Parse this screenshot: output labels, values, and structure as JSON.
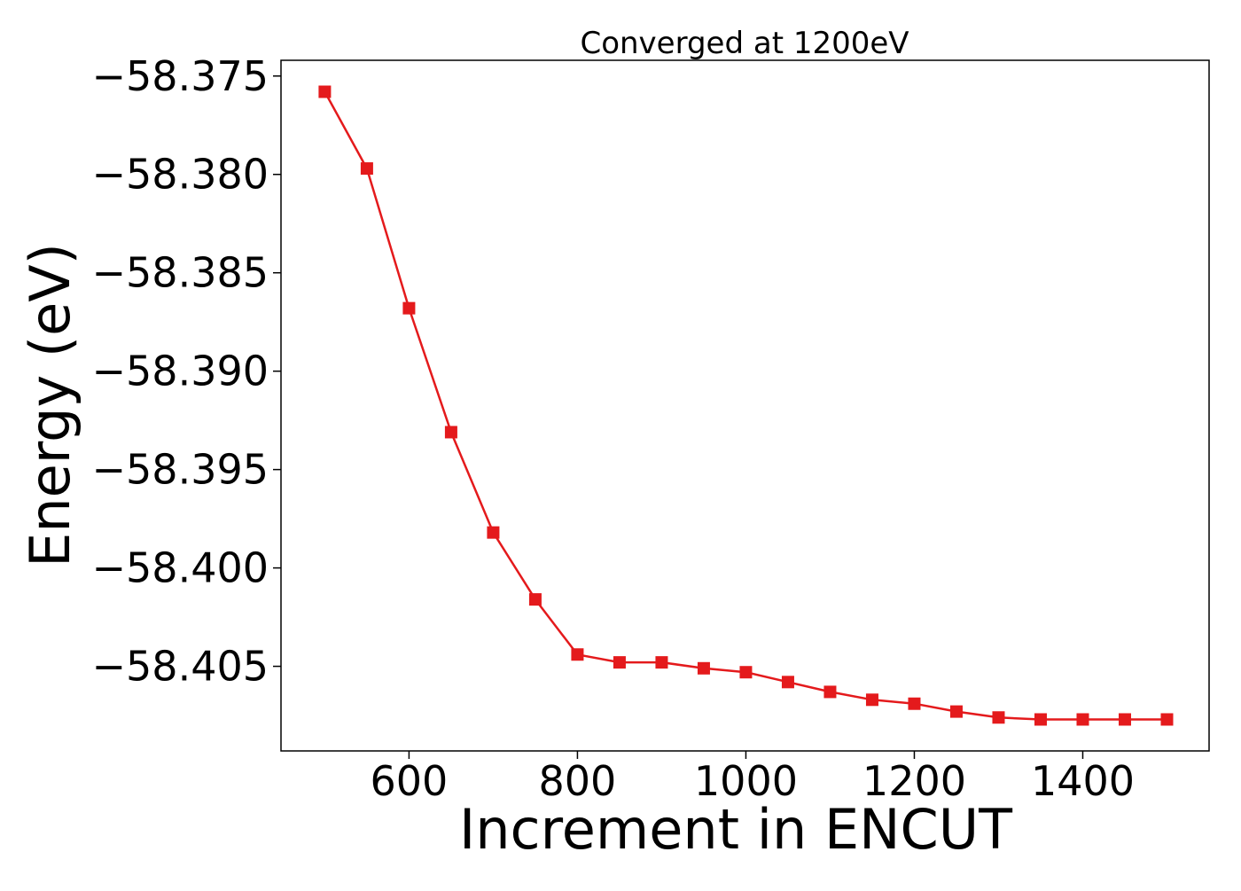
{
  "chart_data": {
    "type": "line",
    "title": "Converged at 1200eV",
    "xlabel": "Increment in ENCUT",
    "ylabel": "Energy (eV)",
    "x": [
      500,
      550,
      600,
      650,
      700,
      750,
      800,
      850,
      900,
      950,
      1000,
      1050,
      1100,
      1150,
      1200,
      1250,
      1300,
      1350,
      1400,
      1450,
      1500
    ],
    "series": [
      {
        "name": "",
        "color": "#e41a1c",
        "marker": "square",
        "values": [
          -58.3758,
          -58.3797,
          -58.3868,
          -58.3931,
          -58.3982,
          -58.4016,
          -58.4044,
          -58.4048,
          -58.4048,
          -58.4051,
          -58.4053,
          -58.4058,
          -58.4063,
          -58.4067,
          -58.4069,
          -58.4073,
          -58.4076,
          -58.4077,
          -58.4077,
          -58.4077,
          -58.4077
        ]
      }
    ],
    "xlim": [
      448,
      1550
    ],
    "ylim": [
      -58.4093,
      -58.3742
    ],
    "xticks": [
      600,
      800,
      1000,
      1200,
      1400
    ],
    "xtick_labels": [
      "600",
      "800",
      "1000",
      "1200",
      "1400"
    ],
    "yticks": [
      -58.375,
      -58.38,
      -58.385,
      -58.39,
      -58.395,
      -58.4,
      -58.405
    ],
    "ytick_labels": [
      "−58.375",
      "−58.380",
      "−58.385",
      "−58.390",
      "−58.395",
      "−58.400",
      "−58.405"
    ],
    "grid": false,
    "legend": "none"
  }
}
